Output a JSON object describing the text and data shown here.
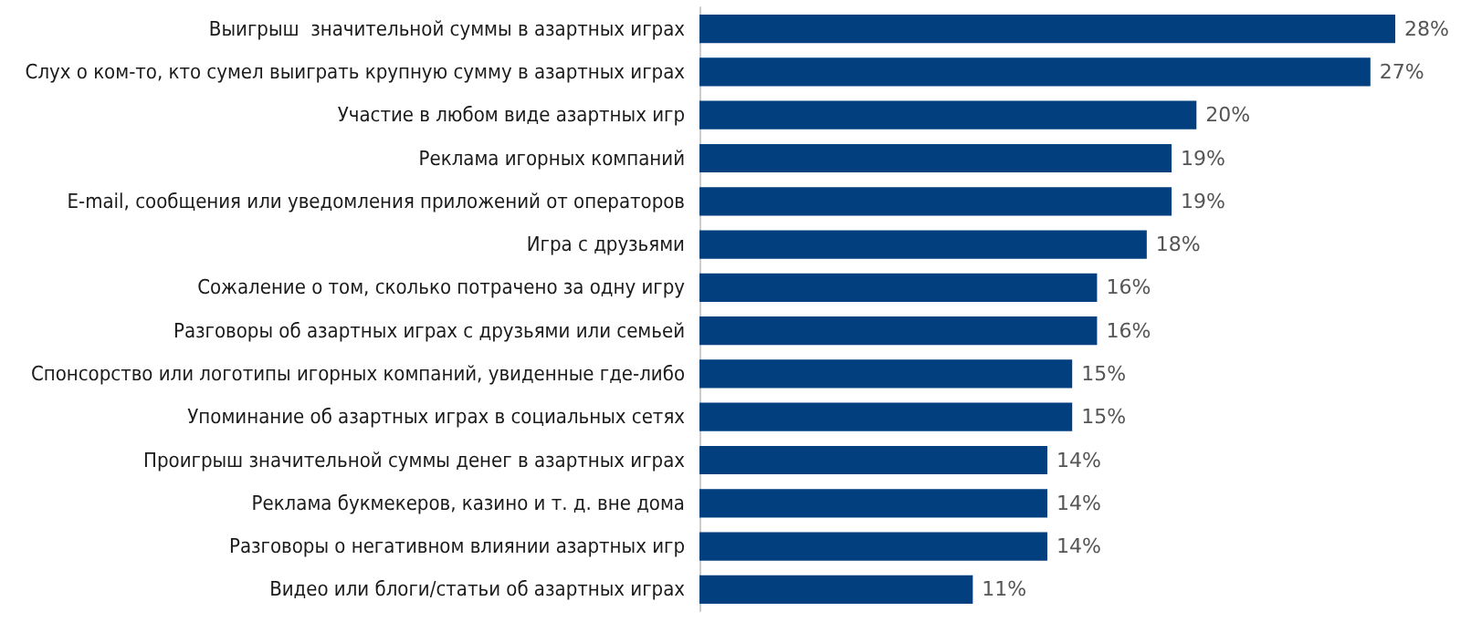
{
  "chart_data": {
    "type": "bar",
    "orientation": "horizontal",
    "categories": [
      "Выигрыш  значительной суммы в азартных играх",
      "Слух о ком-то, кто сумел выиграть крупную сумму в азартных играх",
      "Участие в любом виде азартных игр",
      "Реклама игорных компаний",
      "E-mail, сообщения или уведомления приложений от операторов",
      "Игра с друзьями",
      "Сожаление о том, сколько потрачено за одну игру",
      "Разговоры об азартных играх с друзьями или семьей",
      "Спонсорство или логотипы игорных компаний, увиденные где-либо",
      "Упоминание об азартных играх в социальных сетях",
      "Проигрыш значительной суммы денег в азартных играх",
      "Реклама букмекеров, казино и т. д. вне дома",
      "Разговоры о негативном влиянии азартных игр",
      "Видео или блоги/статьи об азартных играх"
    ],
    "series": [
      {
        "color": "#023f7f",
        "values": [
          28,
          27,
          20,
          19,
          19,
          18,
          16,
          16,
          15,
          15,
          14,
          14,
          14,
          11
        ],
        "value_labels": [
          "28%",
          "27%",
          "20%",
          "19%",
          "19%",
          "18%",
          "16%",
          "16%",
          "15%",
          "15%",
          "14%",
          "14%",
          "14%",
          "11%"
        ]
      }
    ],
    "grid": false
  }
}
